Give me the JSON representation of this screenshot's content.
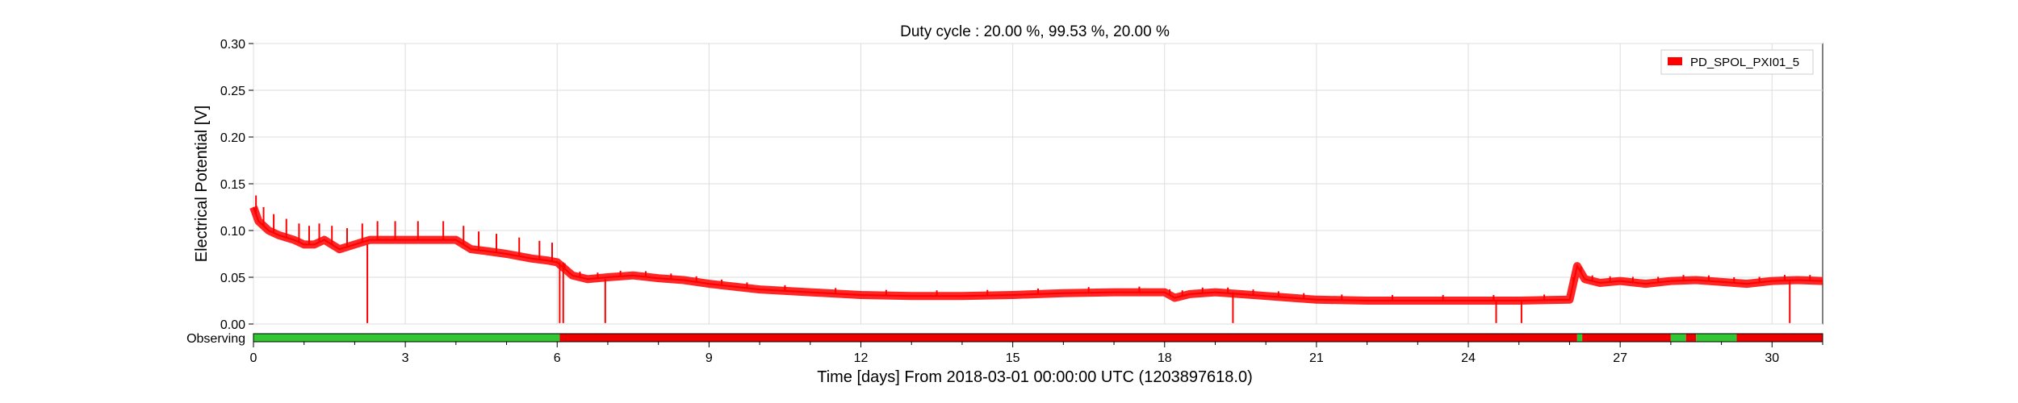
{
  "chart_data": {
    "type": "line",
    "title": "Duty cycle : 20.00 %, 99.53 %, 20.00 %",
    "xlabel": "Time [days] From 2018-03-01 00:00:00 UTC (1203897618.0)",
    "ylabel": "Electrical Potential [V]",
    "xlim": [
      0,
      31
    ],
    "ylim": [
      0,
      0.3
    ],
    "xticks": [
      0,
      3,
      6,
      9,
      12,
      15,
      18,
      21,
      24,
      27,
      30
    ],
    "xtick_labels": [
      "0",
      "3",
      "6",
      "9",
      "12",
      "15",
      "18",
      "21",
      "24",
      "27",
      "30"
    ],
    "yticks": [
      0,
      0.05,
      0.1,
      0.15,
      0.2,
      0.25,
      0.3
    ],
    "ytick_labels": [
      "0.00",
      "0.05",
      "0.10",
      "0.15",
      "0.20",
      "0.25",
      "0.30"
    ],
    "grid": true,
    "legend_position": "top-right",
    "series": [
      {
        "name": "PD_SPOL_PXI01_5",
        "color": "#ff0000",
        "x": [
          0,
          0.1,
          0.3,
          0.5,
          0.8,
          1.0,
          1.2,
          1.4,
          1.7,
          2.0,
          2.3,
          2.6,
          3.0,
          3.5,
          4.0,
          4.3,
          4.6,
          5.0,
          5.5,
          5.8,
          6.0,
          6.3,
          6.6,
          7.0,
          7.5,
          8.0,
          8.5,
          9.0,
          9.5,
          10.0,
          11.0,
          12.0,
          13.0,
          14.0,
          15.0,
          16.0,
          17.0,
          18.0,
          18.2,
          18.5,
          19.0,
          19.5,
          20.0,
          20.5,
          21.0,
          22.0,
          23.0,
          24.0,
          25.0,
          26.0,
          26.15,
          26.3,
          26.6,
          27.0,
          27.5,
          28.0,
          28.5,
          29.0,
          29.5,
          30.0,
          30.5,
          31.0
        ],
        "y": [
          0.125,
          0.11,
          0.1,
          0.095,
          0.09,
          0.085,
          0.085,
          0.09,
          0.08,
          0.085,
          0.09,
          0.09,
          0.09,
          0.09,
          0.09,
          0.08,
          0.078,
          0.075,
          0.07,
          0.068,
          0.066,
          0.052,
          0.048,
          0.05,
          0.052,
          0.049,
          0.047,
          0.043,
          0.04,
          0.037,
          0.034,
          0.031,
          0.03,
          0.03,
          0.031,
          0.033,
          0.034,
          0.034,
          0.028,
          0.032,
          0.034,
          0.032,
          0.03,
          0.028,
          0.026,
          0.025,
          0.025,
          0.025,
          0.025,
          0.026,
          0.062,
          0.048,
          0.044,
          0.046,
          0.043,
          0.046,
          0.047,
          0.045,
          0.043,
          0.046,
          0.047,
          0.046
        ]
      }
    ],
    "spikes_down_x": [
      2.25,
      6.05,
      6.12,
      6.95,
      19.35,
      24.55,
      25.05,
      30.35
    ]
  },
  "observing_bar": {
    "label": "Observing",
    "segments": [
      {
        "start": 0,
        "end": 6.05,
        "state": "on"
      },
      {
        "start": 6.05,
        "end": 26.15,
        "state": "off"
      },
      {
        "start": 26.15,
        "end": 26.25,
        "state": "on"
      },
      {
        "start": 26.25,
        "end": 28.0,
        "state": "off"
      },
      {
        "start": 28.0,
        "end": 28.3,
        "state": "on"
      },
      {
        "start": 28.3,
        "end": 28.5,
        "state": "off"
      },
      {
        "start": 28.5,
        "end": 29.3,
        "state": "on"
      },
      {
        "start": 29.3,
        "end": 31.0,
        "state": "off"
      }
    ],
    "colors": {
      "on": "#33c633",
      "off": "#ee0000"
    }
  }
}
